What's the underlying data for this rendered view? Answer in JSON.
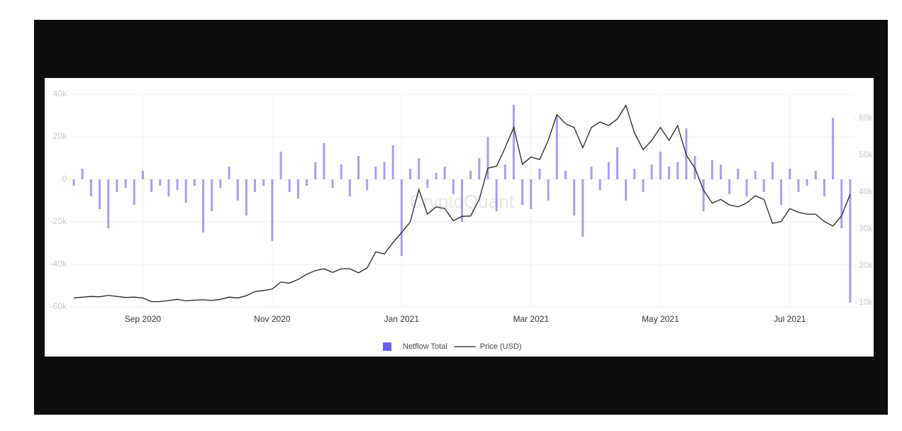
{
  "chart_data": {
    "type": "bar",
    "watermark": "CryptoQuant",
    "categories": [
      null,
      null,
      null,
      null,
      null,
      null,
      null,
      null,
      "Sep 2020",
      null,
      null,
      null,
      null,
      null,
      null,
      null,
      null,
      null,
      null,
      null,
      null,
      null,
      null,
      "Nov 2020",
      null,
      null,
      null,
      null,
      null,
      null,
      null,
      null,
      null,
      null,
      null,
      null,
      null,
      null,
      "Jan 2021",
      null,
      null,
      null,
      null,
      null,
      null,
      null,
      null,
      null,
      null,
      null,
      null,
      null,
      null,
      "Mar 2021",
      null,
      null,
      null,
      null,
      null,
      null,
      null,
      null,
      null,
      null,
      null,
      null,
      null,
      null,
      "May 2021",
      null,
      null,
      null,
      null,
      null,
      null,
      null,
      null,
      null,
      null,
      null,
      null,
      null,
      null,
      "Jul 2021",
      null,
      null,
      null,
      null,
      null,
      null,
      null
    ],
    "series": [
      {
        "name": "Netflow Total",
        "type": "bar",
        "color": "#6a5cf0",
        "values": [
          -3000,
          5000,
          -8000,
          -14000,
          -23000,
          -6000,
          -4000,
          -12000,
          4000,
          -6000,
          -3000,
          -8000,
          -5000,
          -11000,
          -3000,
          -25000,
          -15000,
          -4000,
          6000,
          -10000,
          -17000,
          -6000,
          -3000,
          -29000,
          13000,
          -6000,
          -9000,
          -3000,
          8000,
          17000,
          -4000,
          7000,
          -8000,
          11000,
          -5000,
          6000,
          8000,
          16000,
          -36000,
          5000,
          10000,
          -4000,
          3000,
          6000,
          -7000,
          -20000,
          4000,
          10000,
          20000,
          -15000,
          7000,
          35000,
          -12000,
          -14000,
          5000,
          -10000,
          30000,
          4000,
          -17000,
          -27000,
          6000,
          -5000,
          8000,
          15000,
          -10000,
          5000,
          -6000,
          7000,
          13000,
          6000,
          8000,
          24000,
          11000,
          -15000,
          9000,
          7000,
          -7000,
          5000,
          -8000,
          4000,
          -6000,
          8000,
          -12000,
          5000,
          -6000,
          -3000,
          4000,
          -8000,
          29000,
          -23000,
          -58000
        ]
      },
      {
        "name": "Price (USD)",
        "type": "line",
        "color": "#222222",
        "axis": "y2",
        "values": [
          11300,
          11500,
          11700,
          11600,
          12000,
          11700,
          11400,
          11500,
          11300,
          10300,
          10300,
          10600,
          10900,
          10500,
          10700,
          10800,
          10600,
          10900,
          11500,
          11300,
          11900,
          13000,
          13300,
          13700,
          15600,
          15300,
          16300,
          17700,
          18700,
          19200,
          18200,
          19200,
          19200,
          18100,
          19400,
          23800,
          23200,
          26300,
          29000,
          31900,
          40700,
          34000,
          36000,
          35500,
          32200,
          33400,
          33500,
          38000,
          46500,
          47000,
          52000,
          57500,
          47500,
          49500,
          48800,
          54000,
          61000,
          58500,
          57500,
          52000,
          57500,
          59000,
          58000,
          59800,
          63500,
          56000,
          51500,
          54000,
          57500,
          54000,
          58000,
          50000,
          46500,
          40500,
          37000,
          38000,
          36500,
          36000,
          37000,
          39000,
          38000,
          31500,
          32000,
          35500,
          34500,
          34000,
          34000,
          32000,
          30800,
          33500,
          39400
        ]
      }
    ],
    "ylim": [
      -60000,
      40000
    ],
    "yticks": [
      {
        "value": -60000,
        "label": "-60k"
      },
      {
        "value": -40000,
        "label": "-40k"
      },
      {
        "value": -20000,
        "label": "-20k"
      },
      0,
      {
        "value": 20000,
        "label": "20k"
      },
      {
        "value": 40000,
        "label": "40k"
      }
    ],
    "y2lim": [
      8850,
      66500
    ],
    "y2ticks": [
      {
        "value": 10000,
        "label": "10k"
      },
      {
        "value": 20000,
        "label": "20k"
      },
      {
        "value": 30000,
        "label": "30k"
      },
      {
        "value": 40000,
        "label": "40k"
      },
      {
        "value": 50000,
        "label": "50k"
      },
      {
        "value": 60000,
        "label": "60k"
      }
    ],
    "grid": true,
    "legend": "bottom"
  }
}
